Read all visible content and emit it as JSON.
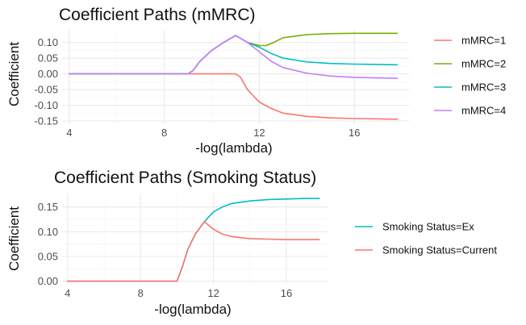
{
  "chart_data": [
    {
      "type": "line",
      "title": "Coefficient Paths (mMRC)",
      "xlabel": "-log(lambda)",
      "ylabel": "Coefficient",
      "xlim": [
        3.7,
        18.3
      ],
      "ylim": [
        -0.16,
        0.14
      ],
      "xticks": [
        "4",
        "8",
        "12",
        "16"
      ],
      "xtick_values": [
        4,
        8,
        12,
        16
      ],
      "yticks": [
        "0.10",
        "0.05",
        "0.00",
        "-0.05",
        "-0.10",
        "-0.15"
      ],
      "ytick_values": [
        0.1,
        0.05,
        0.0,
        -0.05,
        -0.1,
        -0.15
      ],
      "grid": true,
      "legend_position": "right",
      "series": [
        {
          "name": "mMRC=1",
          "color": "#f8766d",
          "x": [
            4,
            9,
            10,
            11,
            11.2,
            11.5,
            12,
            12.5,
            13,
            14,
            15,
            16,
            17,
            17.8
          ],
          "y": [
            0,
            0,
            0,
            0,
            -0.01,
            -0.05,
            -0.09,
            -0.11,
            -0.125,
            -0.135,
            -0.14,
            -0.142,
            -0.143,
            -0.144
          ]
        },
        {
          "name": "mMRC=2",
          "color": "#7cae00",
          "x": [
            4,
            9,
            9.2,
            9.5,
            10,
            10.5,
            11,
            11.5,
            12,
            12.3,
            12.6,
            13,
            14,
            15,
            16,
            17,
            17.8
          ],
          "y": [
            0,
            0,
            0.01,
            0.04,
            0.075,
            0.1,
            0.122,
            0.1,
            0.09,
            0.09,
            0.1,
            0.115,
            0.125,
            0.128,
            0.129,
            0.129,
            0.129
          ]
        },
        {
          "name": "mMRC=3",
          "color": "#00bfc4",
          "x": [
            4,
            9,
            9.2,
            9.5,
            10,
            10.5,
            11,
            11.5,
            12,
            12.5,
            13,
            14,
            15,
            16,
            17,
            17.8
          ],
          "y": [
            0,
            0,
            0.01,
            0.04,
            0.075,
            0.1,
            0.122,
            0.1,
            0.085,
            0.065,
            0.05,
            0.038,
            0.033,
            0.031,
            0.03,
            0.029
          ]
        },
        {
          "name": "mMRC=4",
          "color": "#c77cff",
          "x": [
            4,
            9,
            9.2,
            9.5,
            10,
            10.5,
            11,
            11.5,
            12,
            12.5,
            13,
            14,
            15,
            16,
            17,
            17.8
          ],
          "y": [
            0,
            0,
            0.01,
            0.04,
            0.075,
            0.1,
            0.122,
            0.1,
            0.07,
            0.04,
            0.02,
            0.002,
            -0.007,
            -0.011,
            -0.013,
            -0.014
          ]
        }
      ]
    },
    {
      "type": "line",
      "title": "Coefficient Paths (Smoking Status)",
      "xlabel": "-log(lambda)",
      "ylabel": "Coefficient",
      "xlim": [
        3.7,
        18.3
      ],
      "ylim": [
        -0.007,
        0.177
      ],
      "xticks": [
        "4",
        "8",
        "12",
        "16"
      ],
      "xtick_values": [
        4,
        8,
        12,
        16
      ],
      "yticks": [
        "0.15",
        "0.10",
        "0.05",
        "0.00"
      ],
      "ytick_values": [
        0.15,
        0.1,
        0.05,
        0.0
      ],
      "grid": true,
      "legend_position": "right",
      "series": [
        {
          "name": "Smoking Status=Ex",
          "color": "#00bfc4",
          "x": [
            4,
            10,
            10.3,
            10.6,
            11,
            11.5,
            12,
            12.5,
            13,
            14,
            15,
            16,
            17,
            17.8
          ],
          "y": [
            0,
            0,
            0.03,
            0.065,
            0.095,
            0.12,
            0.14,
            0.15,
            0.157,
            0.162,
            0.165,
            0.166,
            0.167,
            0.167
          ]
        },
        {
          "name": "Smoking Status=Current",
          "color": "#f8766d",
          "x": [
            4,
            10,
            10.3,
            10.6,
            11,
            11.5,
            12,
            12.5,
            13,
            14,
            15,
            16,
            17,
            17.8
          ],
          "y": [
            0,
            0,
            0.03,
            0.065,
            0.095,
            0.12,
            0.105,
            0.095,
            0.09,
            0.086,
            0.085,
            0.084,
            0.084,
            0.084
          ]
        }
      ]
    }
  ]
}
